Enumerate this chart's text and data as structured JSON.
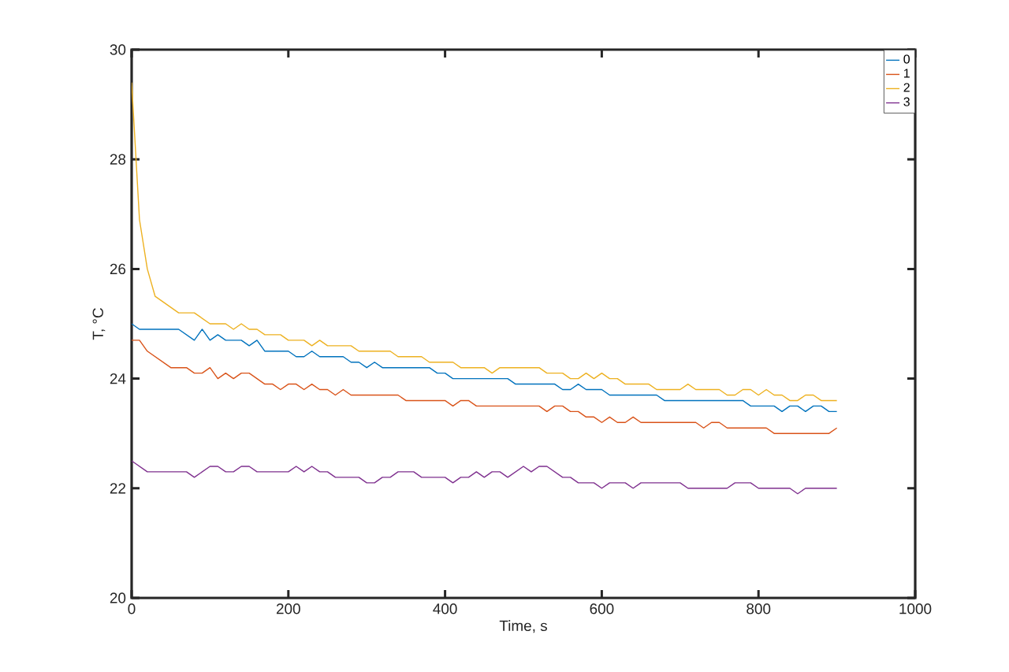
{
  "chart_data": {
    "type": "line",
    "xlabel": "Time, s",
    "ylabel": "T, °C",
    "xlim": [
      0,
      1000
    ],
    "ylim": [
      20,
      30
    ],
    "xticks": [
      0,
      200,
      400,
      600,
      800,
      1000
    ],
    "yticks": [
      20,
      22,
      24,
      26,
      28,
      30
    ],
    "legend": "top right",
    "grid": false,
    "marker": "none",
    "line_style": "solid",
    "series": [
      {
        "name": "0",
        "color": "#0072bd",
        "x": [
          0,
          10,
          60,
          80,
          90,
          100,
          110,
          120,
          140,
          150,
          160,
          170,
          200,
          210,
          220,
          230,
          240,
          270,
          280,
          290,
          300,
          310,
          320,
          380,
          390,
          400,
          410,
          480,
          490,
          540,
          550,
          560,
          570,
          580,
          600,
          610,
          670,
          680,
          780,
          790,
          820,
          830,
          840,
          850,
          860,
          870,
          880,
          890,
          900
        ],
        "values": [
          25.0,
          24.9,
          24.9,
          24.7,
          24.9,
          24.7,
          24.8,
          24.7,
          24.7,
          24.6,
          24.7,
          24.5,
          24.5,
          24.4,
          24.4,
          24.5,
          24.4,
          24.4,
          24.3,
          24.3,
          24.2,
          24.3,
          24.2,
          24.2,
          24.1,
          24.1,
          24.0,
          24.0,
          23.9,
          23.9,
          23.8,
          23.8,
          23.9,
          23.8,
          23.8,
          23.7,
          23.7,
          23.6,
          23.6,
          23.5,
          23.5,
          23.4,
          23.5,
          23.5,
          23.4,
          23.5,
          23.5,
          23.4,
          23.4
        ]
      },
      {
        "name": "1",
        "color": "#d95319",
        "x": [
          0,
          10,
          20,
          50,
          70,
          80,
          90,
          100,
          110,
          120,
          130,
          140,
          150,
          170,
          180,
          190,
          200,
          210,
          220,
          230,
          240,
          250,
          260,
          270,
          280,
          340,
          350,
          400,
          410,
          420,
          430,
          440,
          520,
          530,
          540,
          550,
          560,
          570,
          580,
          590,
          600,
          610,
          620,
          630,
          640,
          650,
          720,
          730,
          740,
          750,
          760,
          810,
          820,
          890,
          900
        ],
        "values": [
          24.7,
          24.7,
          24.5,
          24.2,
          24.2,
          24.1,
          24.1,
          24.2,
          24.0,
          24.1,
          24.0,
          24.1,
          24.1,
          23.9,
          23.9,
          23.8,
          23.9,
          23.9,
          23.8,
          23.9,
          23.8,
          23.8,
          23.7,
          23.8,
          23.7,
          23.7,
          23.6,
          23.6,
          23.5,
          23.6,
          23.6,
          23.5,
          23.5,
          23.4,
          23.5,
          23.5,
          23.4,
          23.4,
          23.3,
          23.3,
          23.2,
          23.3,
          23.2,
          23.2,
          23.3,
          23.2,
          23.2,
          23.1,
          23.2,
          23.2,
          23.1,
          23.1,
          23.0,
          23.0,
          23.1
        ]
      },
      {
        "name": "2",
        "color": "#edb120",
        "x": [
          0,
          10,
          20,
          30,
          60,
          80,
          100,
          120,
          130,
          140,
          150,
          160,
          170,
          190,
          200,
          220,
          230,
          240,
          250,
          280,
          290,
          330,
          340,
          370,
          380,
          410,
          420,
          450,
          460,
          470,
          520,
          530,
          550,
          560,
          570,
          580,
          590,
          600,
          610,
          620,
          630,
          660,
          670,
          700,
          710,
          720,
          750,
          760,
          770,
          780,
          790,
          800,
          810,
          820,
          830,
          840,
          850,
          860,
          870,
          880,
          900
        ],
        "values": [
          29.4,
          26.9,
          26.0,
          25.5,
          25.2,
          25.2,
          25.0,
          25.0,
          24.9,
          25.0,
          24.9,
          24.9,
          24.8,
          24.8,
          24.7,
          24.7,
          24.6,
          24.7,
          24.6,
          24.6,
          24.5,
          24.5,
          24.4,
          24.4,
          24.3,
          24.3,
          24.2,
          24.2,
          24.1,
          24.2,
          24.2,
          24.1,
          24.1,
          24.0,
          24.0,
          24.1,
          24.0,
          24.1,
          24.0,
          24.0,
          23.9,
          23.9,
          23.8,
          23.8,
          23.9,
          23.8,
          23.8,
          23.7,
          23.7,
          23.8,
          23.8,
          23.7,
          23.8,
          23.7,
          23.7,
          23.6,
          23.6,
          23.7,
          23.7,
          23.6,
          23.6
        ]
      },
      {
        "name": "3",
        "color": "#7e2f8e",
        "x": [
          0,
          20,
          70,
          80,
          100,
          110,
          120,
          130,
          140,
          150,
          160,
          200,
          210,
          220,
          230,
          240,
          250,
          260,
          290,
          300,
          310,
          320,
          330,
          340,
          360,
          370,
          400,
          410,
          420,
          430,
          440,
          450,
          460,
          470,
          480,
          500,
          510,
          520,
          530,
          550,
          560,
          570,
          590,
          600,
          610,
          630,
          640,
          650,
          700,
          710,
          760,
          770,
          790,
          800,
          840,
          850,
          860,
          900
        ],
        "values": [
          22.5,
          22.3,
          22.3,
          22.2,
          22.4,
          22.4,
          22.3,
          22.3,
          22.4,
          22.4,
          22.3,
          22.3,
          22.4,
          22.3,
          22.4,
          22.3,
          22.3,
          22.2,
          22.2,
          22.1,
          22.1,
          22.2,
          22.2,
          22.3,
          22.3,
          22.2,
          22.2,
          22.1,
          22.2,
          22.2,
          22.3,
          22.2,
          22.3,
          22.3,
          22.2,
          22.4,
          22.3,
          22.4,
          22.4,
          22.2,
          22.2,
          22.1,
          22.1,
          22.0,
          22.1,
          22.1,
          22.0,
          22.1,
          22.1,
          22.0,
          22.0,
          22.1,
          22.1,
          22.0,
          22.0,
          21.9,
          22.0,
          22.0
        ]
      }
    ]
  }
}
